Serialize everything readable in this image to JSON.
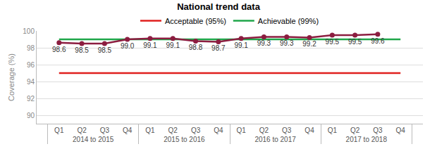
{
  "chart_data": {
    "type": "line",
    "title": "National trend data",
    "y_label": "Coverage (%)",
    "categories": [
      "Q1",
      "Q2",
      "Q3",
      "Q4",
      "Q1",
      "Q2",
      "Q3",
      "Q4",
      "Q1",
      "Q2",
      "Q3",
      "Q4",
      "Q1",
      "Q2",
      "Q3",
      "Q4"
    ],
    "category_groups": [
      "2014 to 2015",
      "2015 to 2016",
      "2016 to 2017",
      "2017 to 2018"
    ],
    "series": [
      {
        "name": "Acceptable (95%)",
        "color": "#e0201e",
        "line_style": "solid",
        "values": [
          95,
          95,
          95,
          95,
          95,
          95,
          95,
          95,
          95,
          95,
          95,
          95,
          95,
          95,
          95,
          95
        ]
      },
      {
        "name": "Achievable (99%)",
        "color": "#1fa64a",
        "line_style": "solid",
        "values": [
          99,
          99,
          99,
          99,
          99,
          99,
          99,
          99,
          99,
          99,
          99,
          99,
          99,
          99,
          99,
          99
        ]
      },
      {
        "color": "#8c1d40",
        "marker": "circle",
        "line_style": "solid",
        "data_labels": true,
        "values": [
          98.6,
          98.5,
          98.5,
          99.0,
          99.1,
          99.1,
          98.8,
          98.7,
          99.1,
          99.3,
          99.3,
          99.2,
          99.5,
          99.5,
          99.6,
          null
        ],
        "value_labels": [
          "98.6",
          "98.5",
          "98.5",
          "99.0",
          "99.1",
          "99.1",
          "98.8",
          "98.7",
          "99.1",
          "99.3",
          "99.3",
          "99.2",
          "99.5",
          "99.5",
          "99.6",
          null
        ]
      }
    ],
    "ylim": [
      89,
      100
    ],
    "yticks": [
      90,
      92,
      94,
      96,
      98,
      100
    ],
    "grid": true,
    "legend": "top"
  }
}
